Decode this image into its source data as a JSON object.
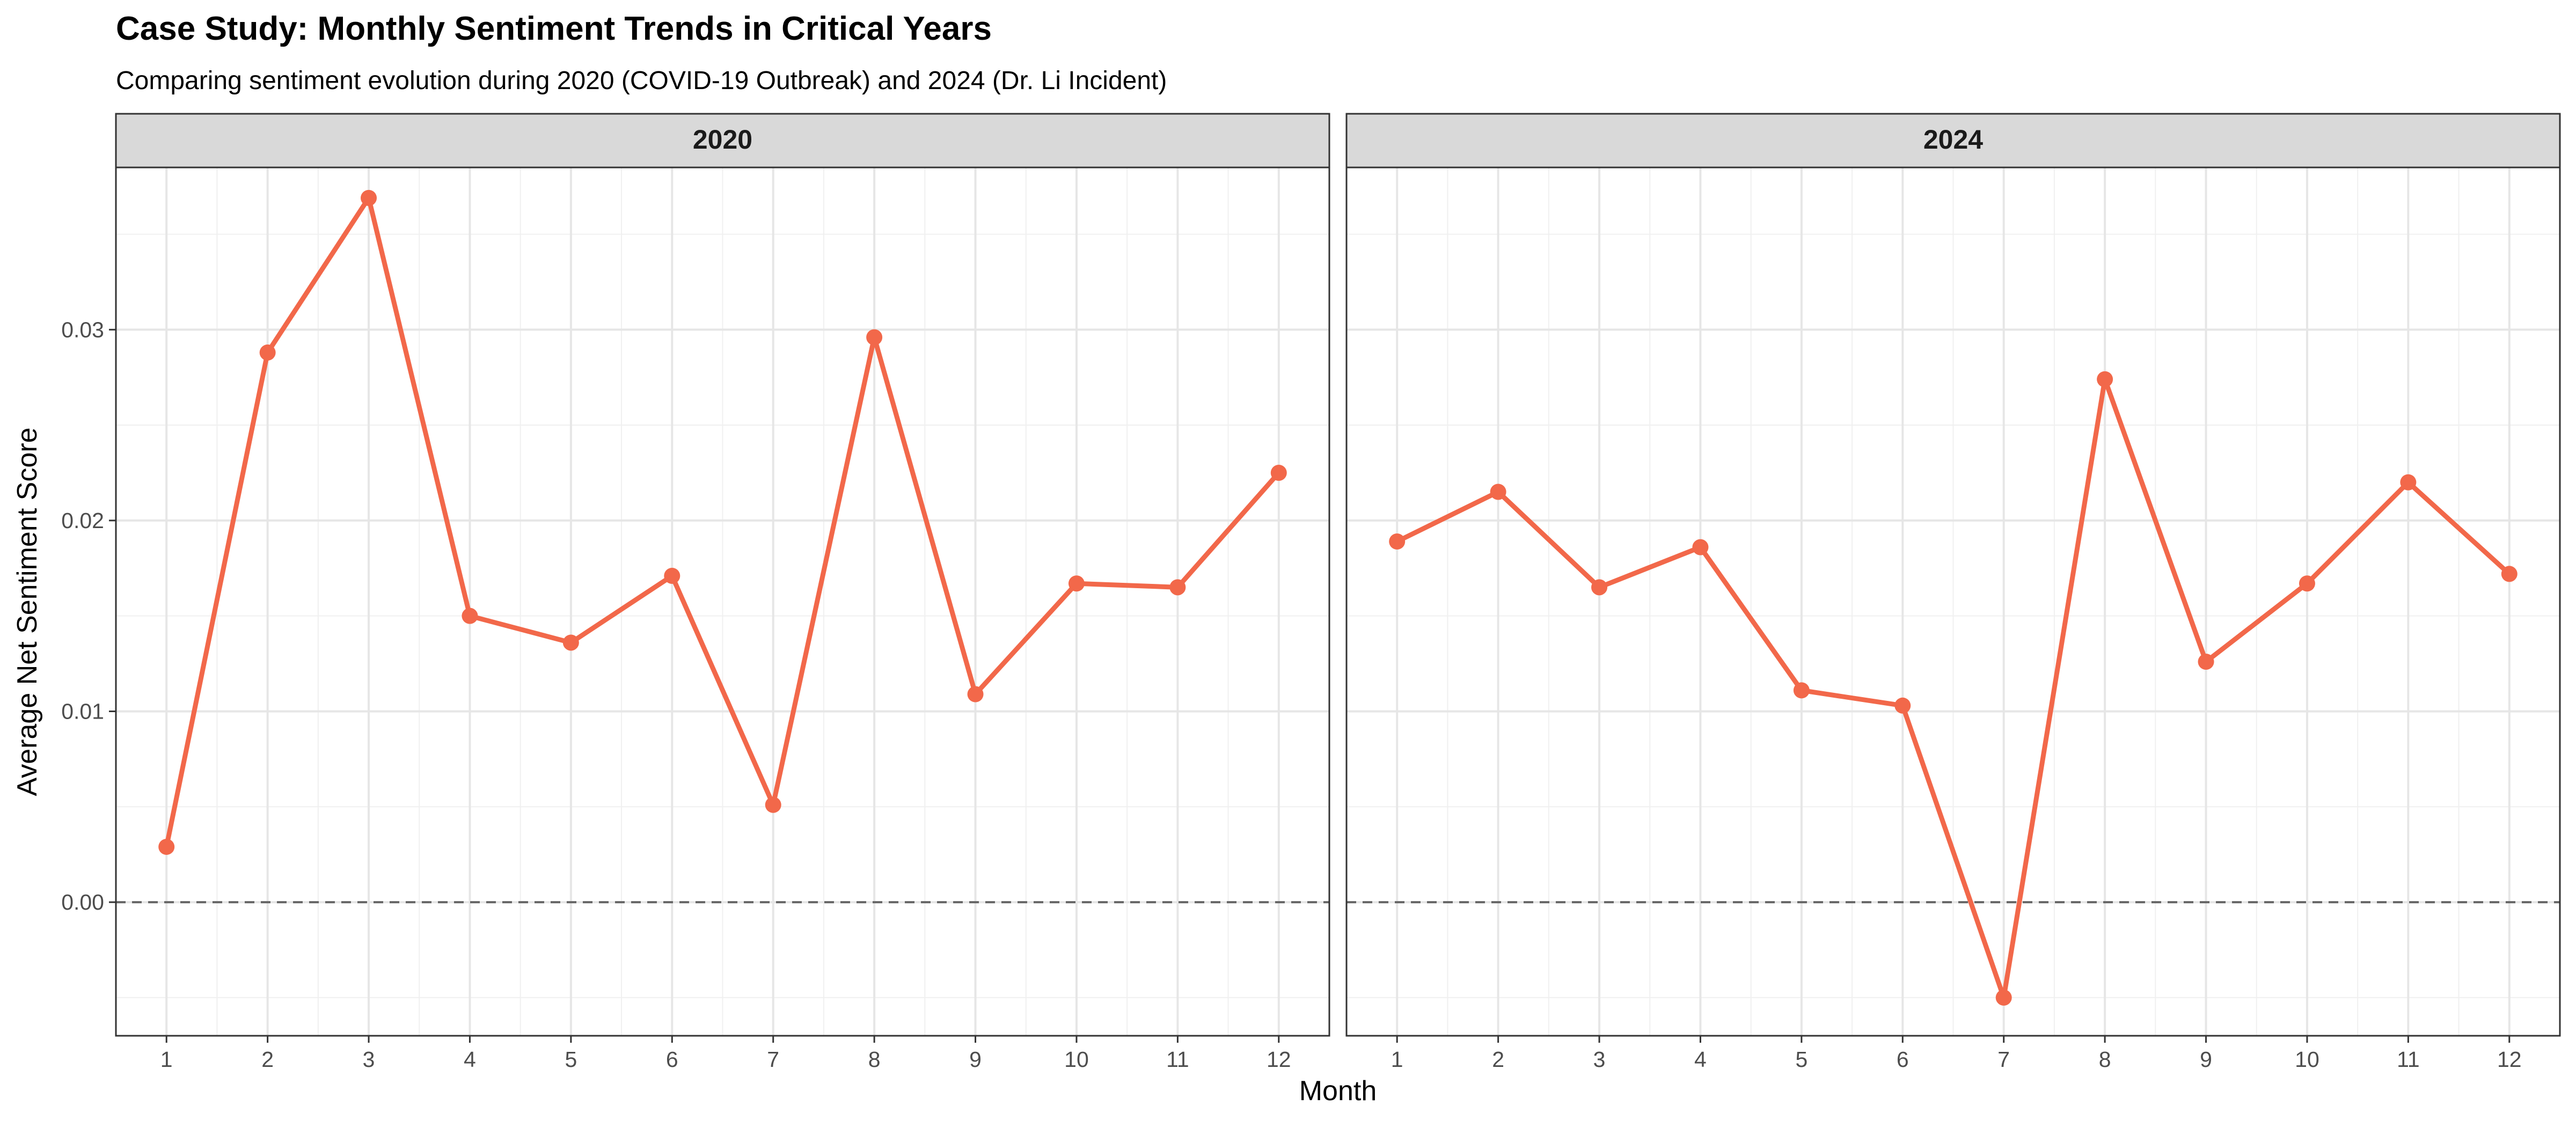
{
  "chart_data": {
    "type": "line",
    "title": "Case Study: Monthly Sentiment Trends in Critical Years",
    "subtitle": "Comparing sentiment evolution during 2020 (COVID-19 Outbreak) and 2024 (Dr. Li Incident)",
    "xlabel": "Month",
    "ylabel": "Average Net Sentiment Score",
    "x": [
      1,
      2,
      3,
      4,
      5,
      6,
      7,
      8,
      9,
      10,
      11,
      12
    ],
    "x_tick_labels": [
      "1",
      "2",
      "3",
      "4",
      "5",
      "6",
      "7",
      "8",
      "9",
      "10",
      "11",
      "12"
    ],
    "y_ticks": [
      0,
      0.01,
      0.02,
      0.03
    ],
    "y_tick_labels": [
      "0.00",
      "0.01",
      "0.02",
      "0.03"
    ],
    "ylim": [
      -0.007,
      0.0385
    ],
    "xlim": [
      0.5,
      12.5
    ],
    "grid": true,
    "reference_line": {
      "y": 0,
      "style": "dashed",
      "color": "#666666"
    },
    "line_color": "#F2684A",
    "panels": [
      {
        "label": "2020",
        "values": [
          0.0029,
          0.0288,
          0.0369,
          0.015,
          0.0136,
          0.0171,
          0.0051,
          0.0296,
          0.0109,
          0.0167,
          0.0165,
          0.0225
        ]
      },
      {
        "label": "2024",
        "values": [
          0.0189,
          0.0215,
          0.0165,
          0.0186,
          0.0111,
          0.0103,
          -0.005,
          0.0274,
          0.0126,
          0.0167,
          0.022,
          0.0172
        ]
      }
    ]
  }
}
